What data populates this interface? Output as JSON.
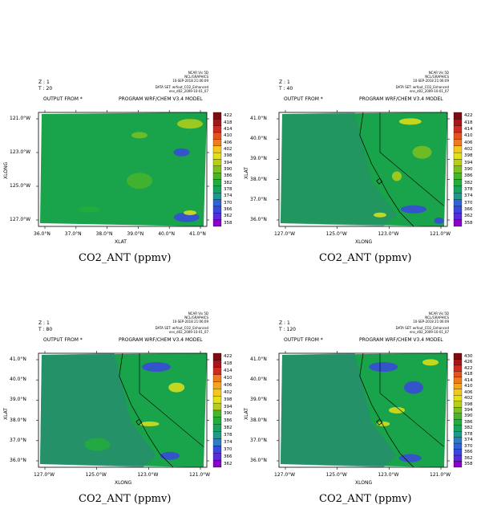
{
  "panels": [
    {
      "meta_lines": [
        "NCAR Vis 5D",
        "NCL/GRAPHICS",
        "10-SEP-2018 21:06:09"
      ],
      "run": [
        "DATA SET: wrfout_CO2_Enhanced",
        "ens_d02_2009-10-01_07"
      ],
      "z_label": "Z : 1",
      "t_label": "T : 20",
      "output_from": "OUTPUT FROM *",
      "program": "PROGRAM WRF/CHEM V3.4 MODEL",
      "x_title": "XLAT",
      "y_title": "XLONG",
      "x_ticks": [
        "36.0°N",
        "37.0°N",
        "38.0°N",
        "39.0°N",
        "40.0°N",
        "41.0°N"
      ],
      "y_ticks": [
        "121.0°W",
        "123.0°W",
        "125.0°W",
        "127.0°W"
      ],
      "colorbar": [
        "422",
        "418",
        "414",
        "410",
        "406",
        "402",
        "398",
        "394",
        "390",
        "386",
        "382",
        "378",
        "374",
        "370",
        "366",
        "362",
        "358"
      ],
      "caption": "CO2_ANT (ppmv)"
    },
    {
      "meta_lines": [
        "NCAR Vis 5D",
        "NCL/GRAPHICS",
        "10-SEP-2018 21:06:09"
      ],
      "run": [
        "DATA SET: wrfout_CO2_Enhanced",
        "ens_d02_2009-10-01_07"
      ],
      "z_label": "Z : 1",
      "t_label": "T : 40",
      "output_from": "OUTPUT FROM *",
      "program": "PROGRAM WRF/CHEM V3.4 MODEL",
      "x_title": "XLONG",
      "y_title": "XLAT",
      "x_ticks": [
        "127.0°W",
        "125.0°W",
        "123.0°W",
        "121.0°W"
      ],
      "y_ticks": [
        "41.0°N",
        "40.0°N",
        "39.0°N",
        "38.0°N",
        "37.0°N",
        "36.0°N"
      ],
      "colorbar": [
        "422",
        "418",
        "414",
        "410",
        "406",
        "402",
        "398",
        "394",
        "390",
        "386",
        "382",
        "378",
        "374",
        "370",
        "366",
        "362",
        "358"
      ],
      "caption": "CO2_ANT (ppmv)"
    },
    {
      "meta_lines": [
        "NCAR Vis 5D",
        "NCL/GRAPHICS",
        "10-SEP-2018 21:06:09"
      ],
      "run": [
        "DATA SET: wrfout_CO2_Enhanced",
        "ens_d02_2009-10-01_07"
      ],
      "z_label": "Z : 1",
      "t_label": "T : 80",
      "output_from": "OUTPUT FROM *",
      "program": "PROGRAM WRF/CHEM V3.4 MODEL",
      "x_title": "XLONG",
      "y_title": "XLAT",
      "x_ticks": [
        "127.0°W",
        "125.0°W",
        "123.0°W",
        "121.0°W"
      ],
      "y_ticks": [
        "41.0°N",
        "40.0°N",
        "39.0°N",
        "38.0°N",
        "37.0°N",
        "36.0°N"
      ],
      "colorbar": [
        "422",
        "418",
        "414",
        "410",
        "406",
        "402",
        "398",
        "394",
        "390",
        "386",
        "382",
        "378",
        "374",
        "370",
        "366",
        "362"
      ],
      "caption": "CO2_ANT (ppmv)"
    },
    {
      "meta_lines": [
        "NCAR Vis 5D",
        "NCL/GRAPHICS",
        "10-SEP-2018 21:06:09"
      ],
      "run": [
        "DATA SET: wrfout_CO2_Enhanced",
        "ens_d02_2009-10-01_07"
      ],
      "z_label": "Z : 1",
      "t_label": "T : 120",
      "output_from": "OUTPUT FROM *",
      "program": "PROGRAM WRF/CHEM V3.4 MODEL",
      "x_title": "XLONG",
      "y_title": "XLAT",
      "x_ticks": [
        "127.0°W",
        "125.0°W",
        "123.0°W",
        "121.0°W"
      ],
      "y_ticks": [
        "41.0°N",
        "40.0°N",
        "39.0°N",
        "38.0°N",
        "37.0°N",
        "36.0°N"
      ],
      "colorbar": [
        "430",
        "426",
        "422",
        "418",
        "414",
        "410",
        "406",
        "402",
        "398",
        "394",
        "390",
        "386",
        "382",
        "378",
        "374",
        "370",
        "366",
        "362",
        "358"
      ],
      "caption": "CO2_ANT (ppmv)"
    }
  ],
  "palette": {
    "background_field": "#19a34a",
    "ocean_field": "#2a8a74",
    "high": "#e8e81a",
    "low": "#3a36d8",
    "coast_line": "#000000"
  }
}
